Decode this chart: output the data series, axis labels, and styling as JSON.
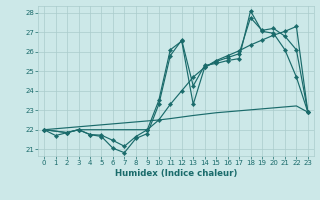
{
  "xlabel": "Humidex (Indice chaleur)",
  "bg_color": "#cce8e8",
  "line_color": "#1a6b6b",
  "grid_color": "#aacccc",
  "xlim": [
    -0.5,
    23.5
  ],
  "ylim": [
    20.65,
    28.35
  ],
  "yticks": [
    21,
    22,
    23,
    24,
    25,
    26,
    27,
    28
  ],
  "xticks": [
    0,
    1,
    2,
    3,
    4,
    5,
    6,
    7,
    8,
    9,
    10,
    11,
    12,
    13,
    14,
    15,
    16,
    17,
    18,
    19,
    20,
    21,
    22,
    23
  ],
  "line1_x": [
    0,
    1,
    2,
    3,
    4,
    5,
    6,
    7,
    8,
    9,
    10,
    11,
    12,
    13,
    14,
    15,
    16,
    17,
    18,
    19,
    20,
    21,
    22,
    23
  ],
  "line1_y": [
    22.0,
    21.7,
    21.85,
    22.0,
    21.75,
    21.65,
    21.05,
    20.82,
    21.55,
    21.8,
    23.3,
    25.8,
    26.6,
    24.25,
    25.3,
    25.4,
    25.55,
    25.65,
    28.1,
    27.05,
    26.95,
    26.1,
    24.7,
    22.9
  ],
  "line2_x": [
    0,
    2,
    3,
    4,
    5,
    6,
    7,
    8,
    9,
    10,
    11,
    12,
    13,
    14,
    15,
    16,
    17,
    18,
    19,
    20,
    21,
    22,
    23
  ],
  "line2_y": [
    22.0,
    21.85,
    22.0,
    21.75,
    21.72,
    21.45,
    21.15,
    21.65,
    22.0,
    23.5,
    26.1,
    26.55,
    23.3,
    25.2,
    25.5,
    25.7,
    25.9,
    27.75,
    27.1,
    27.2,
    26.8,
    26.1,
    22.9
  ],
  "line3_x": [
    0,
    2,
    3,
    9,
    10,
    11,
    12,
    13,
    14,
    15,
    16,
    17,
    18,
    19,
    20,
    21,
    22,
    23
  ],
  "line3_y": [
    22.0,
    21.85,
    22.0,
    22.0,
    22.5,
    23.3,
    24.0,
    24.7,
    25.2,
    25.55,
    25.8,
    26.05,
    26.35,
    26.6,
    26.85,
    27.05,
    27.3,
    22.9
  ],
  "line4_x": [
    0,
    1,
    2,
    3,
    4,
    5,
    6,
    7,
    8,
    9,
    10,
    11,
    12,
    13,
    14,
    15,
    16,
    17,
    18,
    19,
    20,
    21,
    22,
    23
  ],
  "line4_y": [
    22.0,
    22.05,
    22.1,
    22.15,
    22.2,
    22.25,
    22.3,
    22.35,
    22.4,
    22.45,
    22.5,
    22.57,
    22.65,
    22.73,
    22.8,
    22.87,
    22.92,
    22.97,
    23.02,
    23.07,
    23.12,
    23.17,
    23.22,
    22.9
  ]
}
